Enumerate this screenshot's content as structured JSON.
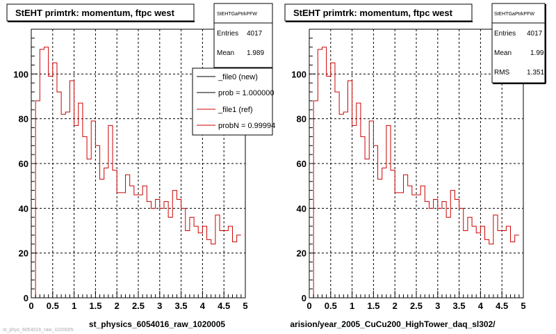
{
  "footer_text": "st_phys_6054016_raw_1020005",
  "panels": [
    {
      "title": "StEHT primtrk: momentum, ftpc west",
      "stats": {
        "name": "StEHTGaPtrkPFW",
        "entries_label": "Entries",
        "entries": "4017",
        "mean_label": "Mean",
        "mean": "1.989"
      },
      "xlabel": "st_physics_6054016_raw_1020005",
      "legend": [
        {
          "label": "_file0 (new)",
          "color": "#000000"
        },
        {
          "label": "prob = 1.000000",
          "color": "#000000"
        },
        {
          "label": "_file1 (ref)",
          "color": "#cc0000"
        },
        {
          "label": "probN = 0.99994",
          "color": "#cc0000"
        }
      ]
    },
    {
      "title": "StEHT primtrk: momentum, ftpc west",
      "stats": {
        "name": "StEHTGaPtrkPFW",
        "entries_label": "Entries",
        "entries": "4017",
        "mean_label": "Mean",
        "mean": "1.99",
        "rms_label": "RMS",
        "rms": "1.351"
      },
      "xlabel": "arision/year_2005_CuCu200_HighTower_daq_sl302/"
    }
  ],
  "chart_data": [
    {
      "type": "histogram",
      "title": "StEHT primtrk: momentum, ftpc west",
      "xlabel": "st_physics_6054016_raw_1020005",
      "xlim": [
        0,
        5
      ],
      "ylim": [
        0,
        120
      ],
      "xticks": [
        "0",
        "0.5",
        "1",
        "1.5",
        "2",
        "2.5",
        "3",
        "3.5",
        "4",
        "4.5",
        "5"
      ],
      "yticks": [
        "0",
        "20",
        "40",
        "60",
        "80",
        "100"
      ],
      "grid": true,
      "legend_position": "top-right",
      "bin_width": 0.1,
      "series": [
        {
          "name": "_file1 (ref)",
          "color": "#cc0000",
          "values": [
            0,
            88,
            111,
            112,
            99,
            105,
            92,
            82,
            83,
            97,
            77,
            87,
            72,
            62,
            79,
            68,
            53,
            58,
            77,
            57,
            47,
            47,
            55,
            50,
            46,
            46,
            50,
            43,
            40,
            44,
            40,
            43,
            36,
            48,
            44,
            40,
            30,
            36,
            32,
            29,
            32,
            26,
            24,
            37,
            30,
            30,
            32,
            25,
            28
          ]
        }
      ]
    },
    {
      "type": "histogram",
      "title": "StEHT primtrk: momentum, ftpc west",
      "xlabel": "arision/year_2005_CuCu200_HighTower_daq_sl302/",
      "xlim": [
        0,
        5
      ],
      "ylim": [
        0,
        120
      ],
      "xticks": [
        "0",
        "0.5",
        "1",
        "1.5",
        "2",
        "2.5",
        "3",
        "3.5",
        "4",
        "4.5",
        "5"
      ],
      "yticks": [
        "0",
        "20",
        "40",
        "60",
        "80",
        "100"
      ],
      "grid": true,
      "bin_width": 0.1,
      "series": [
        {
          "name": "",
          "color": "#cc0000",
          "values": [
            0,
            88,
            111,
            112,
            99,
            105,
            92,
            82,
            83,
            97,
            77,
            87,
            72,
            62,
            79,
            68,
            53,
            58,
            77,
            57,
            47,
            47,
            55,
            50,
            46,
            46,
            50,
            43,
            40,
            44,
            40,
            43,
            36,
            48,
            44,
            40,
            30,
            36,
            32,
            29,
            32,
            26,
            24,
            37,
            30,
            30,
            32,
            25,
            28
          ]
        }
      ]
    }
  ]
}
